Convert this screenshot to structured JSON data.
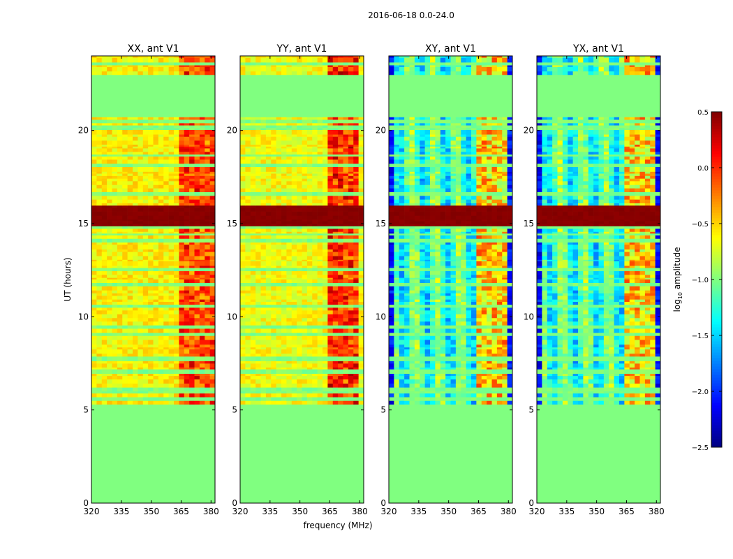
{
  "chart_data": {
    "type": "heatmap",
    "suptitle": "2016-06-18 0.0-24.0",
    "xlabel": "frequency (MHz)",
    "ylabel": "UT (hours)",
    "xlim": [
      320,
      382
    ],
    "ylim": [
      0,
      24
    ],
    "xticks": [
      320,
      335,
      350,
      365,
      380
    ],
    "yticks": [
      0,
      5,
      10,
      15,
      20
    ],
    "xtick_labels": [
      "320",
      "335",
      "350",
      "365",
      "380"
    ],
    "ytick_labels": [
      "0",
      "5",
      "10",
      "15",
      "20"
    ],
    "colorbar": {
      "label_prefix": "log",
      "label_sub": "10",
      "label_suffix": " amplitude",
      "range": [
        -2.5,
        0.5
      ],
      "ticks": [
        0.5,
        0.0,
        -0.5,
        -1.0,
        -1.5,
        -2.0,
        -2.5
      ],
      "tick_labels": [
        "0.5",
        "0.0",
        "−0.5",
        "−1.0",
        "−1.5",
        "−2.0",
        "−2.5"
      ],
      "colormap": "jet"
    },
    "fill_value": -1.0,
    "blank_intervals": [
      [
        0,
        5.3
      ],
      [
        22.8,
        23.0
      ],
      [
        20.7,
        22.8
      ]
    ],
    "panels": [
      {
        "title": "XX, ant V1",
        "kind": "auto",
        "base_level": -0.6,
        "band_level": 0.1,
        "band_freqs": [
          363,
          381
        ]
      },
      {
        "title": "YY, ant V1",
        "kind": "auto",
        "base_level": -0.65,
        "band_level": 0.2,
        "band_freqs": [
          363,
          380
        ]
      },
      {
        "title": "XY, ant V1",
        "kind": "cross",
        "base_level": -1.8,
        "band_level": -0.5,
        "band_freqs": [
          363,
          380
        ]
      },
      {
        "title": "YX, ant V1",
        "kind": "cross",
        "base_level": -1.8,
        "band_level": -0.5,
        "band_freqs": [
          363,
          380
        ]
      }
    ],
    "rfi_hours": [
      15.1,
      15.3,
      15.5,
      15.7
    ]
  }
}
